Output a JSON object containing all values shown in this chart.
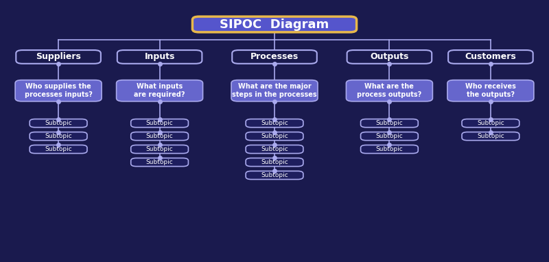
{
  "bg_color": "#1a1a4e",
  "title": "SIPOC  Diagram",
  "title_bg": "#5555cc",
  "title_border": "#e8b84b",
  "title_text_color": "#ffffff",
  "columns": [
    "Suppliers",
    "Inputs",
    "Processes",
    "Outputs",
    "Customers"
  ],
  "col_bg": "#1a1a4e",
  "col_border": "#aaaaee",
  "col_text_color": "#ffffff",
  "subtitles": [
    "Who supplies the\nprocesses inputs?",
    "What inputs\nare required?",
    "What are the major\nsteps in the processes",
    "What are the\nprocess outputs?",
    "Who receives\nthe outputs?"
  ],
  "subtitle_bg": "#6666cc",
  "subtitle_border": "#aaaaee",
  "subtitle_text_color": "#ffffff",
  "subtopics": [
    [
      "Subtopic",
      "Subtopic",
      "Subtopic"
    ],
    [
      "Subtopic",
      "Subtopic",
      "Subtopic",
      "Subtopic"
    ],
    [
      "Subtopic",
      "Subtopic",
      "Subtopic",
      "Subtopic",
      "Subtopic"
    ],
    [
      "Subtopic",
      "Subtopic",
      "Subtopic"
    ],
    [
      "Subtopic",
      "Subtopic"
    ]
  ],
  "subtopic_bg": "#1e1e5e",
  "subtopic_border": "#aaaaee",
  "subtopic_text_color": "#ffffff",
  "connector_color": "#aaaaee",
  "figsize": [
    8.0,
    3.82
  ],
  "dpi": 100
}
